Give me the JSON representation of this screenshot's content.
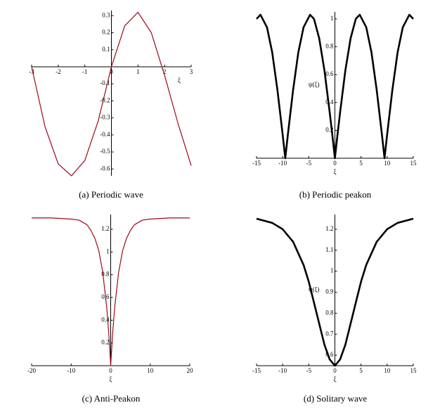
{
  "chart_data": [
    {
      "type": "line",
      "caption": "(a)  Periodic wave",
      "xlabel": "ξ",
      "color": "#9b0a1e",
      "x": [
        -3,
        -2.5,
        -2,
        -1.5,
        -1,
        -0.5,
        0,
        0.5,
        1,
        1.5,
        2,
        2.5,
        3
      ],
      "values": [
        0,
        -0.35,
        -0.57,
        -0.64,
        -0.55,
        -0.32,
        0,
        0.24,
        0.32,
        0.2,
        -0.05,
        -0.33,
        -0.58
      ],
      "xlim": [
        -3,
        3
      ],
      "ylim": [
        -0.64,
        0.33
      ],
      "xticks": [
        -3,
        -2,
        -1,
        0,
        1,
        2,
        3
      ],
      "yticks": [
        -0.6,
        -0.5,
        -0.4,
        -0.3,
        -0.2,
        -0.1,
        0.1,
        0.2,
        0.3
      ]
    },
    {
      "type": "line",
      "caption": "(b)  Periodic peakon",
      "xlabel": "ξ",
      "ylabel": "ψ(ξ)",
      "color": "#000000",
      "x": [
        -15,
        -14.25,
        -13,
        -12,
        -11,
        -10,
        -9.5,
        -9,
        -8,
        -7,
        -6,
        -4.75,
        -4,
        -3,
        -2,
        -1,
        -0.5,
        0,
        0.5,
        1,
        2,
        3,
        4,
        4.75,
        6,
        7,
        8,
        9,
        9.5,
        10,
        11,
        12,
        13,
        14.25,
        15
      ],
      "values": [
        1.0,
        1.03,
        0.94,
        0.76,
        0.49,
        0.17,
        0,
        0.17,
        0.49,
        0.76,
        0.94,
        1.03,
        1.0,
        0.86,
        0.63,
        0.33,
        0.17,
        0,
        0.17,
        0.33,
        0.63,
        0.86,
        1.0,
        1.03,
        0.94,
        0.76,
        0.49,
        0.17,
        0,
        0.17,
        0.49,
        0.76,
        0.94,
        1.03,
        1.0
      ],
      "xlim": [
        -15,
        15
      ],
      "ylim": [
        0,
        1.05
      ],
      "xticks": [
        -15,
        -10,
        -5,
        0,
        5,
        10,
        15
      ],
      "yticks": [
        0.2,
        0.4,
        0.6,
        0.8,
        1
      ]
    },
    {
      "type": "line",
      "caption": "(c)  Anti-Peakon",
      "xlabel": "ξ",
      "color": "#9b0a1e",
      "x": [
        -20,
        -15,
        -10,
        -8,
        -6,
        -5,
        -4,
        -3,
        -2,
        -1,
        -0.5,
        0,
        0.5,
        1,
        2,
        3,
        4,
        5,
        6,
        8,
        10,
        15,
        20
      ],
      "values": [
        1.3,
        1.3,
        1.29,
        1.28,
        1.24,
        1.19,
        1.12,
        1.01,
        0.82,
        0.51,
        0.29,
        0,
        0.29,
        0.51,
        0.82,
        1.01,
        1.12,
        1.19,
        1.24,
        1.28,
        1.29,
        1.3,
        1.3
      ],
      "xlim": [
        -20,
        20
      ],
      "ylim": [
        0,
        1.33
      ],
      "xticks": [
        -20,
        -10,
        0,
        10,
        20
      ],
      "yticks": [
        0.2,
        0.4,
        0.6,
        0.8,
        1,
        1.2
      ]
    },
    {
      "type": "line",
      "caption": "(d)  Solitary wave",
      "xlabel": "ξ",
      "ylabel": "ψ(ξ)",
      "color": "#000000",
      "x": [
        -15,
        -12,
        -10,
        -8,
        -6,
        -5,
        -4,
        -3,
        -2,
        -1,
        0,
        1,
        2,
        3,
        4,
        5,
        6,
        8,
        10,
        12,
        15
      ],
      "values": [
        1.25,
        1.23,
        1.2,
        1.14,
        1.03,
        0.95,
        0.85,
        0.75,
        0.65,
        0.58,
        0.55,
        0.58,
        0.65,
        0.75,
        0.85,
        0.95,
        1.03,
        1.14,
        1.2,
        1.23,
        1.25
      ],
      "xlim": [
        -15,
        15
      ],
      "ylim": [
        0.55,
        1.27
      ],
      "xticks": [
        -15,
        -10,
        -5,
        0,
        5,
        10,
        15
      ],
      "yticks": [
        0.6,
        0.7,
        0.8,
        0.9,
        1,
        1.1,
        1.2
      ]
    }
  ]
}
